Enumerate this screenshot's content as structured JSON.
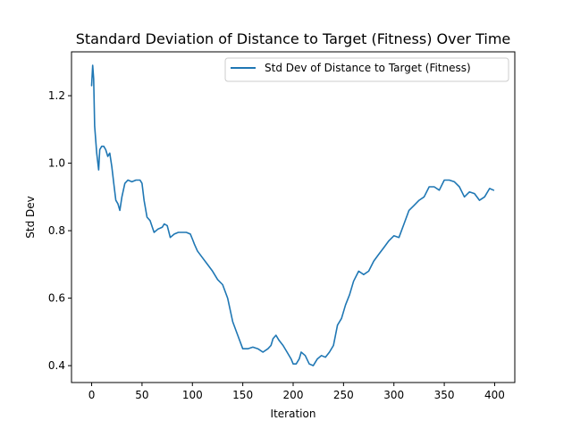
{
  "chart_data": {
    "type": "line",
    "title": "Standard Deviation of Distance to Target (Fitness) Over Time",
    "xlabel": "Iteration",
    "ylabel": "Std Dev",
    "xlim": [
      -20,
      420
    ],
    "ylim": [
      0.35,
      1.33
    ],
    "xticks": [
      0,
      50,
      100,
      150,
      200,
      250,
      300,
      350,
      400
    ],
    "yticks": [
      0.4,
      0.6,
      0.8,
      1.0,
      1.2
    ],
    "ytick_labels": [
      "0.4",
      "0.6",
      "0.8",
      "1.0",
      "1.2"
    ],
    "legend_position": "top-right",
    "grid": false,
    "series": [
      {
        "name": "Std Dev of Distance to Target (Fitness)",
        "color": "#1f77b4",
        "x": [
          0,
          1,
          2,
          3,
          5,
          7,
          8,
          10,
          12,
          14,
          16,
          18,
          20,
          22,
          24,
          26,
          28,
          30,
          33,
          36,
          40,
          44,
          48,
          50,
          52,
          55,
          58,
          62,
          66,
          70,
          72,
          75,
          78,
          82,
          86,
          90,
          94,
          98,
          100,
          102,
          105,
          110,
          115,
          120,
          125,
          130,
          135,
          140,
          145,
          150,
          155,
          160,
          165,
          170,
          175,
          178,
          180,
          183,
          186,
          190,
          194,
          198,
          200,
          203,
          206,
          208,
          212,
          216,
          220,
          224,
          228,
          232,
          236,
          240,
          244,
          248,
          252,
          256,
          260,
          265,
          270,
          275,
          280,
          285,
          290,
          295,
          300,
          305,
          310,
          315,
          320,
          325,
          330,
          335,
          340,
          345,
          350,
          355,
          360,
          365,
          370,
          375,
          380,
          385,
          390,
          395,
          399
        ],
        "y": [
          1.23,
          1.29,
          1.25,
          1.11,
          1.03,
          0.98,
          1.04,
          1.05,
          1.05,
          1.04,
          1.02,
          1.03,
          0.99,
          0.94,
          0.89,
          0.88,
          0.86,
          0.9,
          0.94,
          0.95,
          0.945,
          0.95,
          0.95,
          0.94,
          0.89,
          0.84,
          0.83,
          0.795,
          0.805,
          0.81,
          0.82,
          0.815,
          0.78,
          0.79,
          0.795,
          0.795,
          0.795,
          0.79,
          0.775,
          0.76,
          0.74,
          0.72,
          0.7,
          0.68,
          0.655,
          0.64,
          0.6,
          0.53,
          0.49,
          0.45,
          0.45,
          0.455,
          0.45,
          0.44,
          0.45,
          0.46,
          0.48,
          0.49,
          0.475,
          0.46,
          0.44,
          0.42,
          0.405,
          0.405,
          0.42,
          0.44,
          0.43,
          0.405,
          0.4,
          0.42,
          0.43,
          0.425,
          0.44,
          0.46,
          0.52,
          0.54,
          0.58,
          0.61,
          0.65,
          0.68,
          0.67,
          0.68,
          0.71,
          0.73,
          0.75,
          0.77,
          0.785,
          0.78,
          0.82,
          0.86,
          0.875,
          0.89,
          0.9,
          0.93,
          0.93,
          0.92,
          0.95,
          0.95,
          0.945,
          0.93,
          0.9,
          0.915,
          0.91,
          0.89,
          0.9,
          0.925,
          0.92
        ]
      }
    ]
  }
}
